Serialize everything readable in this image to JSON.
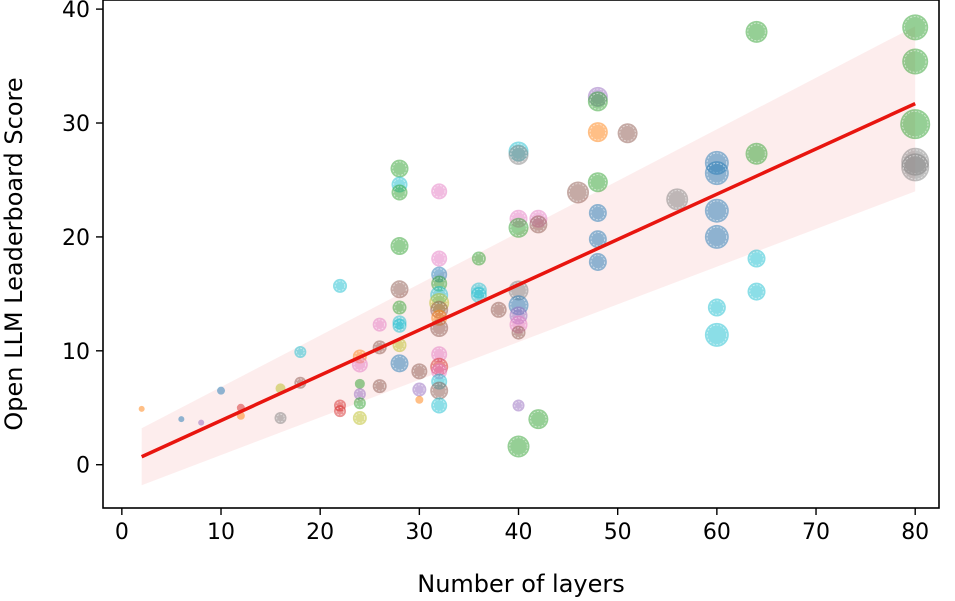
{
  "chart_data": {
    "type": "scatter",
    "title": "",
    "xlabel": "Number of layers",
    "ylabel": "Open LLM Leaderboard Score",
    "xlim": [
      -1.9,
      82.4
    ],
    "ylim": [
      -3.8,
      40.8
    ],
    "xticks": [
      0,
      10,
      20,
      30,
      40,
      50,
      60,
      70,
      80
    ],
    "yticks": [
      0,
      10,
      20,
      30,
      40
    ],
    "xtick_labels": [
      "0",
      "10",
      "20",
      "30",
      "40",
      "50",
      "60",
      "70",
      "80"
    ],
    "ytick_labels": [
      "0",
      "10",
      "20",
      "30",
      "40"
    ],
    "grid": false,
    "legend": "none",
    "trend_line": {
      "color": "#e8150f",
      "x": [
        2,
        80
      ],
      "y": [
        0.7,
        31.7
      ]
    },
    "confidence_band": {
      "color": "#fbdede",
      "x": [
        2,
        80
      ],
      "lower": [
        -1.8,
        24.0
      ],
      "upper": [
        3.2,
        38.5
      ]
    },
    "points": [
      {
        "x": 2,
        "y": 4.9,
        "s": 3,
        "c": "#ff7f0e"
      },
      {
        "x": 6,
        "y": 4.0,
        "s": 3,
        "c": "#1f77b4"
      },
      {
        "x": 8,
        "y": 3.7,
        "s": 3,
        "c": "#9467bd"
      },
      {
        "x": 10,
        "y": 6.5,
        "s": 4,
        "c": "#1f77b4"
      },
      {
        "x": 12,
        "y": 5.0,
        "s": 4,
        "c": "#d62728"
      },
      {
        "x": 12,
        "y": 4.3,
        "s": 4,
        "c": "#ff7f0e"
      },
      {
        "x": 16,
        "y": 6.7,
        "s": 5,
        "c": "#bcbd22"
      },
      {
        "x": 16,
        "y": 4.1,
        "s": 6,
        "c": "#7f7f7f"
      },
      {
        "x": 18,
        "y": 7.2,
        "s": 6,
        "c": "#8c564b"
      },
      {
        "x": 18,
        "y": 9.9,
        "s": 6,
        "c": "#17becf"
      },
      {
        "x": 22,
        "y": 15.7,
        "s": 7,
        "c": "#17becf"
      },
      {
        "x": 22,
        "y": 5.2,
        "s": 6,
        "c": "#d62728"
      },
      {
        "x": 22,
        "y": 4.7,
        "s": 6,
        "c": "#d62728"
      },
      {
        "x": 24,
        "y": 9.5,
        "s": 7,
        "c": "#ff7f0e"
      },
      {
        "x": 24,
        "y": 8.8,
        "s": 8,
        "c": "#e377c2"
      },
      {
        "x": 24,
        "y": 7.1,
        "s": 5,
        "c": "#2ca02c"
      },
      {
        "x": 24,
        "y": 6.2,
        "s": 6,
        "c": "#9467bd"
      },
      {
        "x": 24,
        "y": 5.4,
        "s": 6,
        "c": "#2ca02c"
      },
      {
        "x": 24,
        "y": 4.1,
        "s": 7,
        "c": "#bcbd22"
      },
      {
        "x": 26,
        "y": 12.3,
        "s": 7,
        "c": "#e377c2"
      },
      {
        "x": 26,
        "y": 10.3,
        "s": 7,
        "c": "#8c564b"
      },
      {
        "x": 26,
        "y": 6.9,
        "s": 7,
        "c": "#8c564b"
      },
      {
        "x": 28,
        "y": 26.0,
        "s": 9,
        "c": "#2ca02c"
      },
      {
        "x": 28,
        "y": 24.6,
        "s": 8,
        "c": "#17becf"
      },
      {
        "x": 28,
        "y": 23.9,
        "s": 8,
        "c": "#2ca02c"
      },
      {
        "x": 28,
        "y": 19.2,
        "s": 9,
        "c": "#2ca02c"
      },
      {
        "x": 28,
        "y": 15.4,
        "s": 9,
        "c": "#8c564b"
      },
      {
        "x": 28,
        "y": 13.8,
        "s": 7,
        "c": "#2ca02c"
      },
      {
        "x": 28,
        "y": 12.5,
        "s": 7,
        "c": "#17becf"
      },
      {
        "x": 28,
        "y": 12.2,
        "s": 7,
        "c": "#17becf"
      },
      {
        "x": 28,
        "y": 10.5,
        "s": 7,
        "c": "#bcbd22"
      },
      {
        "x": 28,
        "y": 8.9,
        "s": 9,
        "c": "#1f77b4"
      },
      {
        "x": 30,
        "y": 8.2,
        "s": 8,
        "c": "#8c564b"
      },
      {
        "x": 30,
        "y": 6.6,
        "s": 7,
        "c": "#9467bd"
      },
      {
        "x": 30,
        "y": 5.7,
        "s": 4,
        "c": "#ff7f0e"
      },
      {
        "x": 32,
        "y": 24.0,
        "s": 8,
        "c": "#e377c2"
      },
      {
        "x": 32,
        "y": 18.1,
        "s": 8,
        "c": "#e377c2"
      },
      {
        "x": 32,
        "y": 16.7,
        "s": 8,
        "c": "#1f77b4"
      },
      {
        "x": 32,
        "y": 15.9,
        "s": 8,
        "c": "#2ca02c"
      },
      {
        "x": 32,
        "y": 14.9,
        "s": 9,
        "c": "#17becf"
      },
      {
        "x": 32,
        "y": 14.2,
        "s": 10,
        "c": "#bcbd22"
      },
      {
        "x": 32,
        "y": 13.6,
        "s": 9,
        "c": "#8c564b"
      },
      {
        "x": 32,
        "y": 12.9,
        "s": 8,
        "c": "#ff7f0e"
      },
      {
        "x": 32,
        "y": 12.0,
        "s": 9,
        "c": "#8c564b"
      },
      {
        "x": 32,
        "y": 9.7,
        "s": 8,
        "c": "#e377c2"
      },
      {
        "x": 32,
        "y": 8.6,
        "s": 9,
        "c": "#d62728"
      },
      {
        "x": 32,
        "y": 8.2,
        "s": 8,
        "c": "#e377c2"
      },
      {
        "x": 32,
        "y": 7.3,
        "s": 8,
        "c": "#17becf"
      },
      {
        "x": 32,
        "y": 6.5,
        "s": 9,
        "c": "#8c564b"
      },
      {
        "x": 32,
        "y": 5.2,
        "s": 8,
        "c": "#17becf"
      },
      {
        "x": 36,
        "y": 18.1,
        "s": 7,
        "c": "#2ca02c"
      },
      {
        "x": 36,
        "y": 15.3,
        "s": 8,
        "c": "#17becf"
      },
      {
        "x": 36,
        "y": 14.9,
        "s": 8,
        "c": "#17becf"
      },
      {
        "x": 38,
        "y": 13.6,
        "s": 8,
        "c": "#8c564b"
      },
      {
        "x": 40,
        "y": 27.5,
        "s": 10,
        "c": "#17becf"
      },
      {
        "x": 40,
        "y": 27.2,
        "s": 10,
        "c": "#7f7f7f"
      },
      {
        "x": 40,
        "y": 21.6,
        "s": 9,
        "c": "#e377c2"
      },
      {
        "x": 40,
        "y": 20.8,
        "s": 10,
        "c": "#2ca02c"
      },
      {
        "x": 40,
        "y": 15.3,
        "s": 10,
        "c": "#7f7f7f"
      },
      {
        "x": 40,
        "y": 14.0,
        "s": 10,
        "c": "#1f77b4"
      },
      {
        "x": 40,
        "y": 13.1,
        "s": 9,
        "c": "#9467bd"
      },
      {
        "x": 40,
        "y": 12.3,
        "s": 9,
        "c": "#e377c2"
      },
      {
        "x": 40,
        "y": 11.6,
        "s": 7,
        "c": "#8c564b"
      },
      {
        "x": 40,
        "y": 5.2,
        "s": 6,
        "c": "#9467bd"
      },
      {
        "x": 40,
        "y": 1.6,
        "s": 11,
        "c": "#2ca02c"
      },
      {
        "x": 42,
        "y": 21.6,
        "s": 9,
        "c": "#e377c2"
      },
      {
        "x": 42,
        "y": 21.1,
        "s": 9,
        "c": "#8c564b"
      },
      {
        "x": 42,
        "y": 4.0,
        "s": 10,
        "c": "#2ca02c"
      },
      {
        "x": 46,
        "y": 23.9,
        "s": 11,
        "c": "#8c564b"
      },
      {
        "x": 48,
        "y": 32.3,
        "s": 10,
        "c": "#9467bd"
      },
      {
        "x": 48,
        "y": 31.9,
        "s": 10,
        "c": "#2ca02c"
      },
      {
        "x": 48,
        "y": 29.2,
        "s": 10,
        "c": "#ff7f0e"
      },
      {
        "x": 48,
        "y": 24.8,
        "s": 10,
        "c": "#2ca02c"
      },
      {
        "x": 48,
        "y": 22.1,
        "s": 9,
        "c": "#1f77b4"
      },
      {
        "x": 48,
        "y": 19.8,
        "s": 9,
        "c": "#1f77b4"
      },
      {
        "x": 48,
        "y": 17.8,
        "s": 9,
        "c": "#1f77b4"
      },
      {
        "x": 51,
        "y": 29.1,
        "s": 10,
        "c": "#8c564b"
      },
      {
        "x": 56,
        "y": 23.3,
        "s": 11,
        "c": "#7f7f7f"
      },
      {
        "x": 60,
        "y": 26.5,
        "s": 12,
        "c": "#1f77b4"
      },
      {
        "x": 60,
        "y": 25.6,
        "s": 12,
        "c": "#1f77b4"
      },
      {
        "x": 60,
        "y": 22.3,
        "s": 12,
        "c": "#1f77b4"
      },
      {
        "x": 60,
        "y": 20.0,
        "s": 12,
        "c": "#1f77b4"
      },
      {
        "x": 60,
        "y": 13.8,
        "s": 9,
        "c": "#17becf"
      },
      {
        "x": 60,
        "y": 11.4,
        "s": 12,
        "c": "#17becf"
      },
      {
        "x": 64,
        "y": 38.0,
        "s": 11,
        "c": "#2ca02c"
      },
      {
        "x": 64,
        "y": 27.3,
        "s": 11,
        "c": "#2ca02c"
      },
      {
        "x": 64,
        "y": 18.1,
        "s": 9,
        "c": "#17becf"
      },
      {
        "x": 64,
        "y": 15.2,
        "s": 9,
        "c": "#17becf"
      },
      {
        "x": 80,
        "y": 38.4,
        "s": 13,
        "c": "#2ca02c"
      },
      {
        "x": 80,
        "y": 35.4,
        "s": 13,
        "c": "#2ca02c"
      },
      {
        "x": 80,
        "y": 29.9,
        "s": 15,
        "c": "#2ca02c"
      },
      {
        "x": 80,
        "y": 26.6,
        "s": 14,
        "c": "#7f7f7f"
      },
      {
        "x": 80,
        "y": 26.1,
        "s": 14,
        "c": "#7f7f7f"
      }
    ]
  }
}
